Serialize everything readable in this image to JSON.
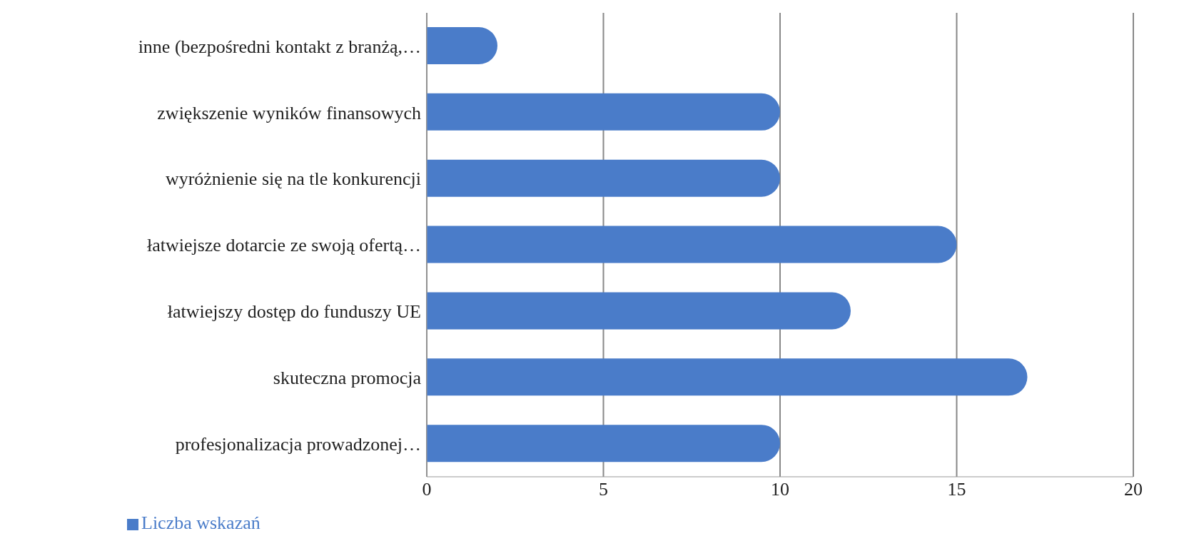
{
  "chart_data": {
    "type": "bar",
    "orientation": "horizontal",
    "categories": [
      "inne (bezpośredni kontakt z branżą,…",
      "zwiększenie wyników finansowych",
      "wyróżnienie się na tle konkurencji",
      "łatwiejsze dotarcie ze swoją ofertą…",
      "łatwiejszy dostęp do funduszy UE",
      "skuteczna promocja",
      "profesjonalizacja prowadzonej…"
    ],
    "series": [
      {
        "name": "Liczba wskazań",
        "color": "#4a7cc9",
        "values": [
          2,
          10,
          10,
          15,
          12,
          17,
          10
        ]
      }
    ],
    "xlim": [
      0,
      20
    ],
    "xticks": [
      0,
      5,
      10,
      15,
      20
    ],
    "grid": "x",
    "legend": "bottom left"
  }
}
